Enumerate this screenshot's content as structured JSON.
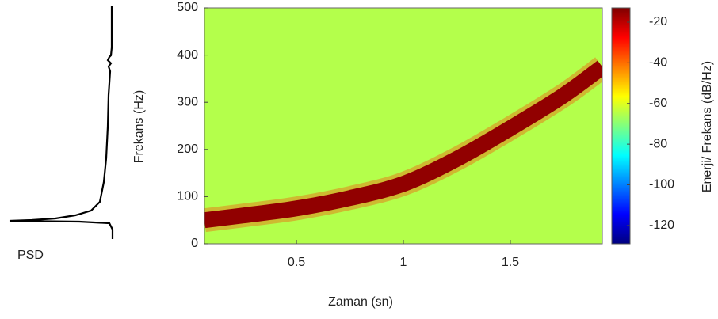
{
  "chart_data": {
    "type": "spectrogram",
    "psd_label": "PSD",
    "xlabel": "Zaman (sn)",
    "ylabel": "Frekans (Hz)",
    "colorbar_label": "Enerji/ Frekans (dB/Hz)",
    "xlim": [
      0.07,
      1.93
    ],
    "xticks": [
      0.5,
      1,
      1.5
    ],
    "ylim": [
      0,
      500
    ],
    "yticks": [
      0,
      100,
      200,
      300,
      400,
      500
    ],
    "clim": [
      -129,
      -13
    ],
    "cticks": [
      -20,
      -40,
      -60,
      -80,
      -100,
      -120
    ],
    "colormap": "jet",
    "background_level": -65,
    "ridge": {
      "level": -15,
      "x": [
        0.07,
        0.25,
        0.5,
        0.75,
        1.0,
        1.25,
        1.5,
        1.75,
        1.93
      ],
      "values": [
        50,
        60,
        75,
        97,
        127,
        180,
        245,
        315,
        375
      ]
    }
  }
}
